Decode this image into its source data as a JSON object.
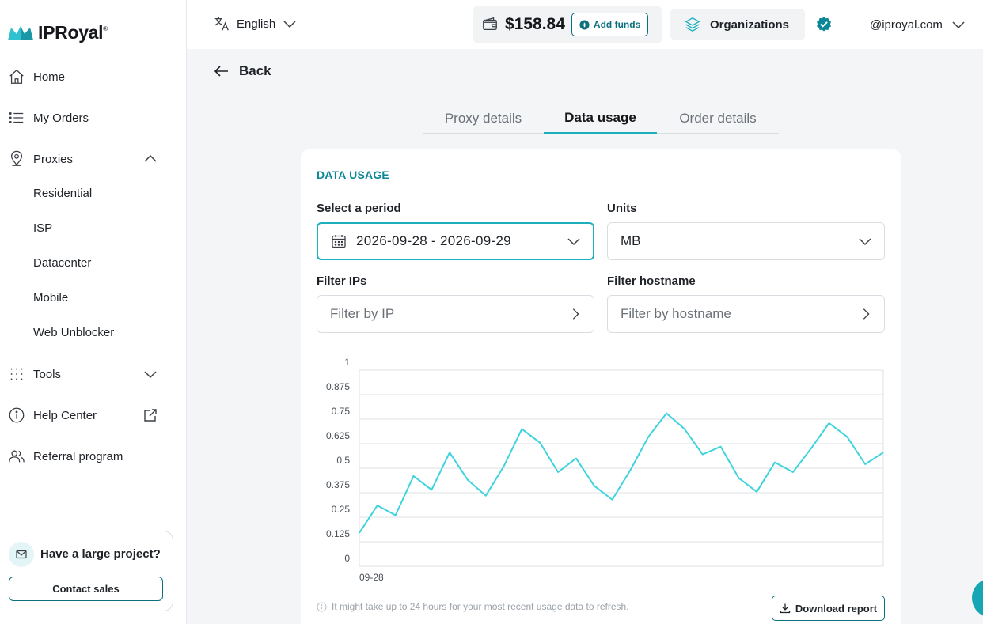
{
  "brand": {
    "name": "IPRoyal",
    "mark": "®"
  },
  "sidebar": {
    "items": [
      {
        "label": "Home",
        "icon": "home-icon"
      },
      {
        "label": "My Orders",
        "icon": "list-icon"
      },
      {
        "label": "Proxies",
        "icon": "location-pin-icon",
        "expanded": true
      },
      {
        "label": "Tools",
        "icon": "grid-dots-icon",
        "expanded": false
      },
      {
        "label": "Help Center",
        "icon": "info-icon"
      },
      {
        "label": "Referral program",
        "icon": "users-icon"
      }
    ],
    "proxies_sub": [
      "Residential",
      "ISP",
      "Datacenter",
      "Mobile",
      "Web Unblocker"
    ],
    "promo": {
      "title": "Have a large project?",
      "button": "Contact sales"
    }
  },
  "header": {
    "language": "English",
    "balance": "$158.84",
    "add_funds": "Add funds",
    "organizations": "Organizations",
    "account": "@iproyal.com"
  },
  "main": {
    "back": "Back",
    "tabs": [
      {
        "label": "Proxy details",
        "active": false
      },
      {
        "label": "Data usage",
        "active": true
      },
      {
        "label": "Order details",
        "active": false
      }
    ],
    "card_title": "DATA USAGE",
    "period_label": "Select a period",
    "period_value": "2026-09-28 - 2026-09-29",
    "units_label": "Units",
    "units_value": "MB",
    "filter_ip_label": "Filter IPs",
    "filter_ip_placeholder": "Filter by IP",
    "filter_host_label": "Filter hostname",
    "filter_host_placeholder": "Filter by hostname",
    "note": "It might take up to 24 hours for your most recent usage data to refresh.",
    "download": "Download report"
  },
  "chart_data": {
    "type": "line",
    "ylim": [
      0,
      1
    ],
    "yticks": [
      "0",
      "0.125",
      "0.25",
      "0.375",
      "0.5",
      "0.625",
      "0.75",
      "0.875",
      "1"
    ],
    "xtick_labels": [
      "09-28"
    ],
    "color": "#3fd3dd",
    "grid": true,
    "series": [
      {
        "values": [
          0.17,
          0.31,
          0.26,
          0.46,
          0.39,
          0.58,
          0.44,
          0.36,
          0.51,
          0.7,
          0.63,
          0.48,
          0.55,
          0.41,
          0.34,
          0.49,
          0.66,
          0.78,
          0.7,
          0.57,
          0.61,
          0.45,
          0.38,
          0.53,
          0.48,
          0.6,
          0.73,
          0.66,
          0.52,
          0.58
        ]
      }
    ],
    "colors": {
      "accent": "#1cb0be",
      "brand_dark": "#0b6f7c"
    }
  }
}
